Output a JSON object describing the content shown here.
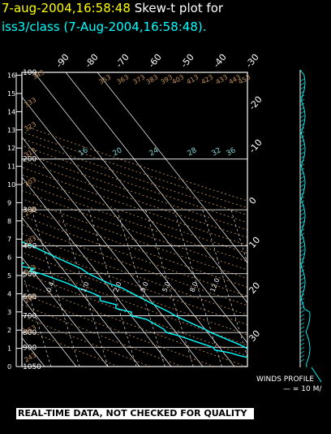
{
  "title": {
    "time": "7-aug-2004,16:58:48",
    "label": "Skew-t plot for",
    "sub": "iss3/class (7-Aug-2004,16:58:48)."
  },
  "banner": "REAL-TIME DATA, NOT CHECKED FOR QUALITY",
  "winds": {
    "title": "WINDS PROFILE",
    "scale": "— = 10 M/"
  },
  "colors": {
    "background": "#000000",
    "trace": "#00ffff",
    "grid": "#ffffff",
    "dry_adiabat": "#c8945a",
    "title_time": "#ffff00"
  },
  "chart_data": {
    "type": "line",
    "pressure_levels": [
      "100",
      "200",
      "300",
      "400",
      "500",
      "600",
      "700",
      "800",
      "900",
      "1050"
    ],
    "km_ticks": [
      "0",
      "1",
      "2",
      "3",
      "4",
      "5",
      "6",
      "7",
      "8",
      "9",
      "10",
      "11",
      "12",
      "13",
      "14",
      "15",
      "16"
    ],
    "top_temp_ticks": [
      "-90",
      "-80",
      "-70",
      "-60",
      "-50",
      "-40",
      "-30"
    ],
    "right_temp_ticks": [
      "-20",
      "-10",
      "0",
      "10",
      "20",
      "30"
    ],
    "mixing_ratio_labels": [
      "16",
      "20",
      "24",
      "28",
      "32",
      "36"
    ],
    "mixing_ratio_lower_labels": [
      "0.4",
      "1.0",
      "2.0",
      "3.0",
      "5.0",
      "8.0",
      "12.0"
    ],
    "theta_labels": [
      "243",
      "253",
      "263",
      "273",
      "283",
      "293",
      "303",
      "313",
      "323",
      "333",
      "343",
      "353",
      "363",
      "373",
      "383",
      "393",
      "403",
      "413",
      "423",
      "433",
      "443",
      "453"
    ],
    "series": [
      {
        "role": "dewpoint",
        "points": [
          [
            100,
            -92
          ],
          [
            115,
            -90
          ],
          [
            130,
            -87
          ],
          [
            150,
            -83
          ],
          [
            170,
            -79
          ],
          [
            190,
            -75
          ],
          [
            210,
            -70
          ],
          [
            230,
            -66
          ],
          [
            250,
            -64
          ],
          [
            270,
            -62
          ],
          [
            285,
            -62
          ],
          [
            300,
            -55
          ],
          [
            315,
            -59
          ],
          [
            325,
            -55
          ],
          [
            335,
            -58
          ],
          [
            350,
            -51
          ],
          [
            360,
            -55
          ],
          [
            370,
            -47
          ],
          [
            380,
            -45
          ],
          [
            400,
            -42
          ],
          [
            420,
            -38
          ],
          [
            440,
            -34
          ],
          [
            460,
            -31
          ],
          [
            470,
            -33
          ],
          [
            480,
            -29
          ],
          [
            490,
            -31
          ],
          [
            500,
            -28
          ],
          [
            520,
            -25
          ],
          [
            540,
            -22
          ],
          [
            560,
            -20
          ],
          [
            580,
            -17
          ],
          [
            600,
            -15
          ],
          [
            620,
            -16
          ],
          [
            640,
            -12
          ],
          [
            660,
            -13
          ],
          [
            680,
            -9
          ],
          [
            700,
            -10
          ],
          [
            720,
            -6
          ],
          [
            740,
            -5
          ],
          [
            760,
            -4
          ],
          [
            780,
            -3
          ],
          [
            800,
            -3
          ],
          [
            820,
            0
          ],
          [
            840,
            2
          ],
          [
            860,
            4
          ],
          [
            880,
            6
          ],
          [
            900,
            8
          ],
          [
            920,
            8
          ],
          [
            940,
            12
          ],
          [
            960,
            14
          ],
          [
            980,
            17
          ],
          [
            1000,
            18
          ],
          [
            1020,
            19
          ]
        ]
      },
      {
        "role": "temperature",
        "points": [
          [
            100,
            -75
          ],
          [
            115,
            -76
          ],
          [
            130,
            -72
          ],
          [
            150,
            -69
          ],
          [
            170,
            -67
          ],
          [
            190,
            -63
          ],
          [
            210,
            -58
          ],
          [
            230,
            -53
          ],
          [
            250,
            -49
          ],
          [
            270,
            -45
          ],
          [
            300,
            -41
          ],
          [
            330,
            -36
          ],
          [
            360,
            -31
          ],
          [
            400,
            -24
          ],
          [
            440,
            -19
          ],
          [
            480,
            -14
          ],
          [
            500,
            -13
          ],
          [
            540,
            -9
          ],
          [
            560,
            -6
          ],
          [
            600,
            -3
          ],
          [
            640,
            0
          ],
          [
            680,
            3
          ],
          [
            700,
            4
          ],
          [
            740,
            7
          ],
          [
            780,
            10
          ],
          [
            800,
            11
          ],
          [
            840,
            14
          ],
          [
            880,
            17
          ],
          [
            900,
            18
          ],
          [
            940,
            21
          ],
          [
            980,
            24
          ],
          [
            1000,
            25
          ],
          [
            1020,
            26
          ]
        ]
      }
    ]
  }
}
